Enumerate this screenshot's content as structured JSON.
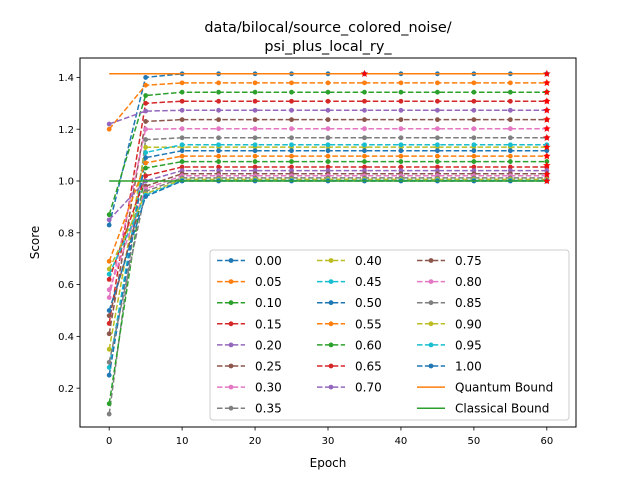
{
  "chart_data": {
    "type": "line",
    "title_lines": [
      "data/bilocal/source_colored_noise/",
      "psi_plus_local_ry_"
    ],
    "xlabel": "Epoch",
    "ylabel": "Score",
    "xlim": [
      -4,
      64
    ],
    "ylim": [
      0.05,
      1.475
    ],
    "xticks": [
      0,
      10,
      20,
      30,
      40,
      50,
      60
    ],
    "yticks": [
      0.2,
      0.4,
      0.6,
      0.8,
      1.0,
      1.2,
      1.4
    ],
    "ytick_labels": [
      "0.2",
      "0.4",
      "0.6",
      "0.8",
      "1.0",
      "1.2",
      "1.4"
    ],
    "x": [
      0,
      5,
      10,
      15,
      20,
      25,
      30,
      35,
      40,
      45,
      50,
      55,
      60
    ],
    "series": [
      {
        "name": "0.00",
        "color": "#1f77b4",
        "start": 0.83,
        "ep5": 1.4,
        "plateau": 1.414
      },
      {
        "name": "0.05",
        "color": "#ff7f0e",
        "start": 1.2,
        "ep5": 1.37,
        "plateau": 1.379
      },
      {
        "name": "0.10",
        "color": "#2ca02c",
        "start": 0.87,
        "ep5": 1.33,
        "plateau": 1.343
      },
      {
        "name": "0.15",
        "color": "#d62728",
        "start": 0.45,
        "ep5": 1.3,
        "plateau": 1.308
      },
      {
        "name": "0.20",
        "color": "#9467bd",
        "start": 1.22,
        "ep5": 1.27,
        "plateau": 1.273
      },
      {
        "name": "0.25",
        "color": "#8c564b",
        "start": 0.41,
        "ep5": 1.23,
        "plateau": 1.237
      },
      {
        "name": "0.30",
        "color": "#e377c2",
        "start": 0.55,
        "ep5": 1.2,
        "plateau": 1.202
      },
      {
        "name": "0.35",
        "color": "#7f7f7f",
        "start": 0.1,
        "ep5": 1.16,
        "plateau": 1.167
      },
      {
        "name": "0.40",
        "color": "#bcbd22",
        "start": 0.35,
        "ep5": 1.13,
        "plateau": 1.131
      },
      {
        "name": "0.45",
        "color": "#17becf",
        "start": 0.28,
        "ep5": 1.11,
        "plateau": 1.14
      },
      {
        "name": "0.50",
        "color": "#1f77b4",
        "start": 0.25,
        "ep5": 1.09,
        "plateau": 1.117
      },
      {
        "name": "0.55",
        "color": "#ff7f0e",
        "start": 0.69,
        "ep5": 1.07,
        "plateau": 1.096
      },
      {
        "name": "0.60",
        "color": "#2ca02c",
        "start": 0.14,
        "ep5": 1.05,
        "plateau": 1.075
      },
      {
        "name": "0.65",
        "color": "#d62728",
        "start": 0.62,
        "ep5": 1.02,
        "plateau": 1.054
      },
      {
        "name": "0.70",
        "color": "#9467bd",
        "start": 0.85,
        "ep5": 1.0,
        "plateau": 1.04
      },
      {
        "name": "0.75",
        "color": "#8c564b",
        "start": 0.48,
        "ep5": 0.98,
        "plateau": 1.028
      },
      {
        "name": "0.80",
        "color": "#e377c2",
        "start": 0.58,
        "ep5": 0.97,
        "plateau": 1.02
      },
      {
        "name": "0.85",
        "color": "#7f7f7f",
        "start": 0.3,
        "ep5": 0.96,
        "plateau": 1.012
      },
      {
        "name": "0.90",
        "color": "#bcbd22",
        "start": 0.66,
        "ep5": 0.95,
        "plateau": 1.006
      },
      {
        "name": "0.95",
        "color": "#17becf",
        "start": 0.64,
        "ep5": 0.945,
        "plateau": 1.002
      },
      {
        "name": "1.00",
        "color": "#1f77b4",
        "start": 0.5,
        "ep5": 0.94,
        "plateau": 1.0
      }
    ],
    "bounds": [
      {
        "name": "Quantum Bound",
        "color": "#ff7f0e",
        "value": 1.414,
        "x_range": [
          0,
          60
        ]
      },
      {
        "name": "Classical Bound",
        "color": "#2ca02c",
        "value": 1.0,
        "x_range": [
          0,
          60
        ]
      }
    ],
    "star_markers": [
      {
        "x": 35,
        "y": 1.414,
        "color": "#ff0000"
      },
      {
        "x": 60,
        "y": 1.414,
        "color": "#ff0000"
      },
      {
        "x": 60,
        "y": 1.379,
        "color": "#ff0000"
      },
      {
        "x": 60,
        "y": 1.343,
        "color": "#ff0000"
      },
      {
        "x": 60,
        "y": 1.308,
        "color": "#ff0000"
      },
      {
        "x": 60,
        "y": 1.273,
        "color": "#ff0000"
      },
      {
        "x": 60,
        "y": 1.237,
        "color": "#ff0000"
      },
      {
        "x": 60,
        "y": 1.202,
        "color": "#ff0000"
      },
      {
        "x": 60,
        "y": 1.167,
        "color": "#ff0000"
      },
      {
        "x": 60,
        "y": 1.131,
        "color": "#ff0000"
      },
      {
        "x": 60,
        "y": 1.096,
        "color": "#ff0000"
      },
      {
        "x": 60,
        "y": 1.06,
        "color": "#ff0000"
      },
      {
        "x": 60,
        "y": 1.025,
        "color": "#ff0000"
      },
      {
        "x": 60,
        "y": 1.0,
        "color": "#ff0000"
      }
    ],
    "legend": {
      "placement": "lower-right",
      "columns": 3
    },
    "grid": false
  }
}
